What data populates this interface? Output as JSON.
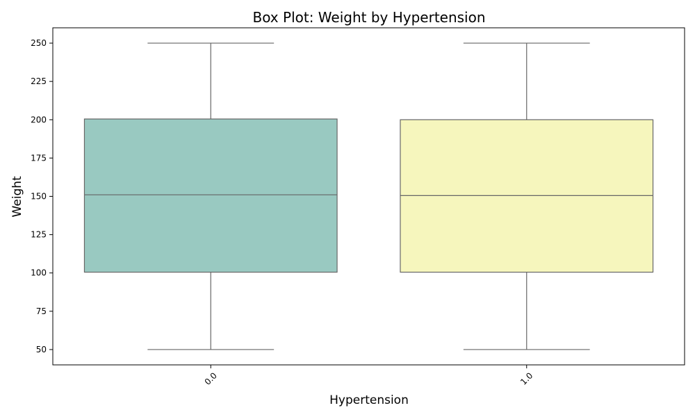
{
  "chart_data": {
    "type": "box",
    "title": "Box Plot: Weight by Hypertension",
    "xlabel": "Hypertension",
    "ylabel": "Weight",
    "ylim": [
      40,
      260
    ],
    "yticks": [
      50,
      75,
      100,
      125,
      150,
      175,
      200,
      225,
      250
    ],
    "grid": false,
    "categories": [
      "0.0",
      "1.0"
    ],
    "boxes": [
      {
        "category": "0.0",
        "min": 50,
        "q1": 100.5,
        "median": 151,
        "q3": 200.5,
        "max": 250,
        "color": "#99c9c1"
      },
      {
        "category": "1.0",
        "min": 50,
        "q1": 100.5,
        "median": 150.5,
        "q3": 200,
        "max": 250,
        "color": "#f6f6bd"
      }
    ],
    "line_color": "#666666"
  }
}
